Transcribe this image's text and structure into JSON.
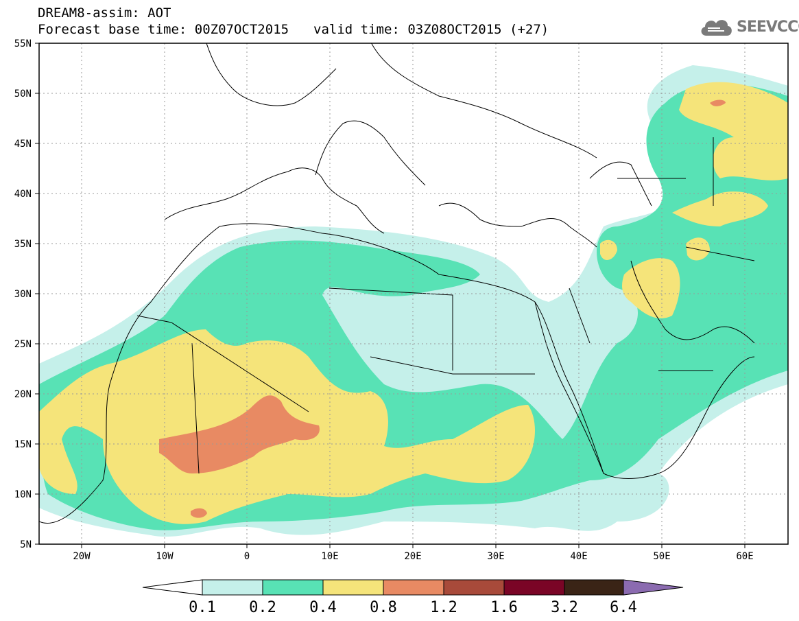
{
  "header": {
    "line1": "DREAM8-assim: AOT",
    "base_time": "Forecast base time: 00Z07OCT2015",
    "valid_time": "valid time: 03Z08OCT2015 (+27)"
  },
  "logo": {
    "text": "SEEVCCC",
    "icon": "cloud-icon"
  },
  "map": {
    "projection": "lat-lon",
    "lon_range": [
      -25,
      65
    ],
    "lat_range": [
      5,
      55
    ],
    "grid": "dotted",
    "lat_ticks": [
      "5N",
      "10N",
      "15N",
      "20N",
      "25N",
      "30N",
      "35N",
      "40N",
      "45N",
      "50N",
      "55N"
    ],
    "lon_ticks": [
      "20W",
      "10W",
      "0",
      "10E",
      "20E",
      "30E",
      "40E",
      "50E",
      "60E"
    ]
  },
  "colorbar": {
    "levels": [
      "0.1",
      "0.2",
      "0.4",
      "0.8",
      "1.2",
      "1.6",
      "3.2",
      "6.4"
    ],
    "colors": [
      "#ffffff",
      "#c5f0ea",
      "#58e2b5",
      "#f5e47a",
      "#e88a63",
      "#a84a3a",
      "#7a0526",
      "#3a2416",
      "#8b6bb0"
    ]
  },
  "colors": {
    "c1": "#c5f0ea",
    "c2": "#58e2b5",
    "c3": "#f5e47a",
    "c4": "#e88a63"
  }
}
